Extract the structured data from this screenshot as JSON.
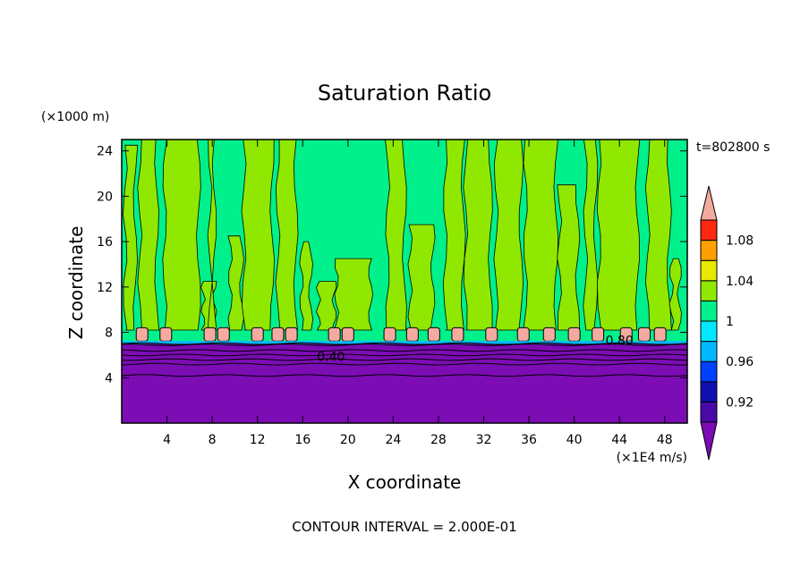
{
  "chart_data": {
    "type": "heatmap",
    "title": "Saturation Ratio",
    "xlabel": "X coordinate",
    "ylabel": "Z coordinate",
    "x_unit": "(×1E4 m/s)",
    "y_unit": "(×1000 m)",
    "time_label": "t=802800 s",
    "footer": "CONTOUR INTERVAL = 2.000E-01",
    "xlim": [
      0,
      50
    ],
    "ylim": [
      0,
      25
    ],
    "x_ticks": [
      4,
      8,
      12,
      16,
      20,
      24,
      28,
      32,
      36,
      40,
      44,
      48
    ],
    "y_ticks": [
      4,
      8,
      12,
      16,
      20,
      24
    ],
    "contour_labels": [
      {
        "text": "0.40",
        "x": 18.5,
        "z": 5.5
      },
      {
        "text": "0.80",
        "x": 44.0,
        "z": 6.9
      }
    ],
    "colorbar": {
      "tick_labels": [
        "0.92",
        "0.96",
        "1",
        "1.04",
        "1.08"
      ],
      "tick_values": [
        0.92,
        0.96,
        1.0,
        1.04,
        1.08
      ],
      "levels": [
        0.9,
        0.92,
        0.94,
        0.96,
        0.98,
        1.0,
        1.02,
        1.04,
        1.06,
        1.08,
        1.1
      ],
      "colors": [
        "#4a0aa8",
        "#1010b0",
        "#0040ff",
        "#00b8ff",
        "#00e8ff",
        "#00f08c",
        "#90e800",
        "#e8e800",
        "#ffa000",
        "#ff2810"
      ],
      "under_color": "#7c0cb4",
      "over_color": "#f5aaa0"
    },
    "colors": {
      "low": "#7c0cb4",
      "mid": "#00f08c",
      "high": "#90e800",
      "peak": "#f5aaa0",
      "peak_edge": "#ffa000"
    },
    "regions": {
      "subsaturated_top_z": 7.0,
      "cap_z": 8.2,
      "bands_z": [
        7.0,
        6.9,
        6.4,
        6.0,
        5.6,
        5.2,
        4.2
      ],
      "supersat_columns": [
        {
          "x0": 0.3,
          "x1": 1.2,
          "ztop": 24.5
        },
        {
          "x0": 1.6,
          "x1": 3.1,
          "ztop": 25.0
        },
        {
          "x0": 3.8,
          "x1": 6.8,
          "ztop": 25.0
        },
        {
          "x0": 7.2,
          "x1": 8.2,
          "ztop": 12.5
        },
        {
          "x0": 7.8,
          "x1": 8.2,
          "ztop": 25.0
        },
        {
          "x0": 9.6,
          "x1": 10.6,
          "ztop": 16.5
        },
        {
          "x0": 10.8,
          "x1": 13.3,
          "ztop": 25.0
        },
        {
          "x0": 13.8,
          "x1": 15.4,
          "ztop": 25.0
        },
        {
          "x0": 15.9,
          "x1": 16.7,
          "ztop": 16.0
        },
        {
          "x0": 17.4,
          "x1": 18.8,
          "ztop": 12.5
        },
        {
          "x0": 19.0,
          "x1": 22.0,
          "ztop": 14.5
        },
        {
          "x0": 23.5,
          "x1": 25.0,
          "ztop": 25.0
        },
        {
          "x0": 25.5,
          "x1": 27.5,
          "ztop": 17.5
        },
        {
          "x0": 28.6,
          "x1": 30.2,
          "ztop": 25.0
        },
        {
          "x0": 30.4,
          "x1": 32.6,
          "ztop": 25.0
        },
        {
          "x0": 33.1,
          "x1": 35.3,
          "ztop": 25.0
        },
        {
          "x0": 35.7,
          "x1": 38.4,
          "ztop": 25.0
        },
        {
          "x0": 38.7,
          "x1": 40.3,
          "ztop": 21.0
        },
        {
          "x0": 41.0,
          "x1": 41.9,
          "ztop": 25.0
        },
        {
          "x0": 42.2,
          "x1": 45.6,
          "ztop": 25.0
        },
        {
          "x0": 46.5,
          "x1": 48.4,
          "ztop": 25.0
        },
        {
          "x0": 48.6,
          "x1": 49.3,
          "ztop": 14.5
        }
      ],
      "peak_cells": [
        1.8,
        3.9,
        7.8,
        9.0,
        12.0,
        13.8,
        15.0,
        18.8,
        20.0,
        23.7,
        25.7,
        27.6,
        29.7,
        32.7,
        35.5,
        37.8,
        40.0,
        42.1,
        44.6,
        46.2,
        47.6
      ]
    }
  }
}
